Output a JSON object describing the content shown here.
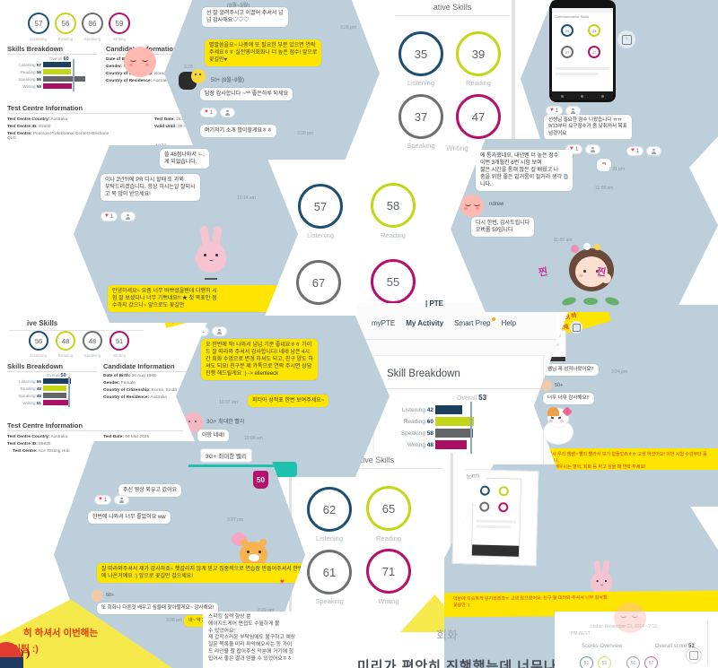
{
  "palette": {
    "navy": "#1d4f72",
    "lime": "#c3d617",
    "gray": "#6e6f72",
    "magenta": "#b5106b",
    "chat_bg": "#bccfdb",
    "kakao_yellow": "#fee500",
    "teal": "#1fc0ae",
    "banner_yellow": "#f6e94b",
    "banner_red": "#e8380d"
  },
  "icons": {
    "heart": "♥",
    "share_arrow": "↑"
  },
  "reaction": {
    "count": "1"
  },
  "report_a": {
    "scores": [
      {
        "label": "Listening",
        "value": "57"
      },
      {
        "label": "Reading",
        "value": "56"
      },
      {
        "label": "Speaking",
        "value": "86"
      },
      {
        "label": "Writing",
        "value": "59"
      }
    ],
    "skills_title": "Skills Breakdown",
    "overall_label": "Overall",
    "overall_value": "60",
    "bars": [
      {
        "label": "Listening",
        "value": 57
      },
      {
        "label": "Reading",
        "value": 56
      },
      {
        "label": "Speaking",
        "value": 86
      },
      {
        "label": "Writing",
        "value": 59
      }
    ],
    "candidate_title": "Candidate Information",
    "candidate": [
      {
        "label": "Date of Birth:",
        "value": ""
      },
      {
        "label": "Gender:",
        "value": "Female"
      },
      {
        "label": "Country of Citizenship:",
        "value": "Korea, South"
      },
      {
        "label": "Country of Residence:",
        "value": "Australia"
      }
    ],
    "centre_title": "Test Centre Information",
    "centre_left": [
      {
        "label": "Test Centre Country:",
        "value": "Australia"
      },
      {
        "label": "Test Centre ID:",
        "value": "81600"
      },
      {
        "label": "Test Centre:",
        "value": "Pearson Professional Centers-Brisbane QLD"
      }
    ],
    "centre_right": [
      {
        "label": "Test Date:",
        "value": "26 Aug 2025"
      },
      {
        "label": "Valid Until:",
        "value": "26 Aug 2027"
      }
    ]
  },
  "report_h": {
    "header": "ive Skills",
    "scores": [
      {
        "label": "Listening",
        "value": "56"
      },
      {
        "label": "Reading",
        "value": "48"
      },
      {
        "label": "Speaking",
        "value": "48"
      },
      {
        "label": "Writing",
        "value": "51"
      }
    ],
    "skills_title": "Skills Breakdown",
    "overall_label": "Overall",
    "overall_value": "50",
    "bars": [
      {
        "label": "Listening",
        "value": 56
      },
      {
        "label": "Reading",
        "value": 48
      },
      {
        "label": "Speaking",
        "value": 48
      },
      {
        "label": "Writing",
        "value": 51
      }
    ],
    "candidate_title": "Candidate Information",
    "candidate": [
      {
        "label": "Date of Birth:",
        "value": "26 Aug 1992"
      },
      {
        "label": "Gender:",
        "value": "Female"
      },
      {
        "label": "Country of Citizenship:",
        "value": "Korea, South"
      },
      {
        "label": "Country of Residence:",
        "value": "Australia"
      }
    ],
    "centre_title": "Test Centre Information",
    "centre_left": [
      {
        "label": "Test Centre Country:",
        "value": "Australia"
      },
      {
        "label": "Test Centre ID:",
        "value": "89830"
      },
      {
        "label": "Test Centre:",
        "value": "Ace Testing Hub"
      }
    ],
    "centre_right": [
      {
        "label": "Test Date:",
        "value": "04 Mar 2025"
      },
      {
        "label": "Valid Until:",
        "value": "04 Mar 2027"
      }
    ]
  },
  "skills_c": {
    "header": "ative Skills",
    "scores": [
      {
        "label": "Listening",
        "value": "35"
      },
      {
        "label": "Reading",
        "value": "39"
      },
      {
        "label": "Speaking",
        "value": "37"
      },
      {
        "label": "Writing",
        "value": "47"
      }
    ]
  },
  "skills_f": {
    "scores": [
      {
        "label": "Listening",
        "value": "57"
      },
      {
        "label": "Reading",
        "value": "58"
      },
      {
        "label": "Speaking",
        "value": "67"
      },
      {
        "label": "Writing",
        "value": "55"
      }
    ]
  },
  "skills_m": {
    "header": "ative Skills",
    "scores": [
      {
        "label": "Listening",
        "value": "62"
      },
      {
        "label": "Reading",
        "value": "65"
      },
      {
        "label": "Speaking",
        "value": "61"
      },
      {
        "label": "Writing",
        "value": "71"
      }
    ]
  },
  "mypte": {
    "logo": "| PTE",
    "nav": [
      {
        "label": "myPTE"
      },
      {
        "label": "My Activity"
      },
      {
        "label": "Smart Prep"
      },
      {
        "label": "Help"
      }
    ],
    "card_title": "Skill Breakdown",
    "overall_label": "Overall",
    "overall_value": "53",
    "bars": [
      {
        "label": "Listening",
        "value": 42
      },
      {
        "label": "Reading",
        "value": 60
      },
      {
        "label": "Speaking",
        "value": 58
      },
      {
        "label": "Writing",
        "value": 48
      }
    ]
  },
  "chat_b": {
    "top_fragment": "(8월~9월)",
    "m1": "선 잘 알려주시고 이끌어 주셔서 넘\n넘 감사해요♡♡♡",
    "t1": "3:28 pm",
    "m2": "별말씀을요~ 나중에 또 필요한 부분 있으면 연락\n주세요ㅎㅎ 실전영어회화나 더 높은 점수! 앞으로\n꽃길만♥",
    "t2": "3:28",
    "sender": "50+ (8월~9월)",
    "m3": "답장 감사합니다 ~^^ 좋은하루 되세요",
    "m4": "여기저기 소개 많이할게요ㅎㅎ",
    "t4": "3:29 pm"
  },
  "chat_d": {
    "m1": "선생님 필요한 점수 나왔습니다 ㅠㅠ\n9/13부터 요구점수가 좀 낮춰져서 목표\n넘겼어요",
    "phone_label": "Communicative Skills"
  },
  "chat_e": {
    "m0": "쓸 48점나와서 ㄴ,\n게 되었습니다.",
    "m1": "이나 2년뒤에 PR 다시 할때 또 과외\n부탁드리겠습니다. 항상 하시는일 잘되시\n고 복 많이 받으세요!",
    "t1": "10:14 am",
    "m2": "안녕하세요~ 요즘 너무 바쁘셨을텐데 다행히 시\n험 잘 보셨다니 너무 기쁘네요!! ★ 첫 목표인 점\n수까지 갔으니~ 앞으로도 꽃길만"
  },
  "chat_g": {
    "m1": "에 통과했네요, 내년엔 더 높은 점수\n이번 3개월간 6번 시험 보며\n짧은 시간을 통해 많은 걸 배웠고 나\n중을 위한 좋은 밑거름이 될거라 생각 듭\n니다.",
    "t1": "11:58 am",
    "sender": "ndrew",
    "m2": "다시 한번, 감사드립니다\n오버롤 59입니다",
    "t2": "11:59 am",
    "m3": "ㅋ",
    "t3": "7:31 pm",
    "sticker_text_1": "찐",
    "sticker_text_2": "찐"
  },
  "chat_i": {
    "m1": "오 한번에 딱! 나와서 넘넘 기분 좋네요ㅎㅎ 가이\n드 잘 따라와 주셔서 감사합니다! 네네 남은 4시\n간 회화 수업으로 변경 하셔도 되고, 친구 양도 하\n셔도 되요! 친구분 제 카톡으로 연락 주시면 상담\n진행 해드릴게요 :) -> ellenleeck",
    "t1": "10:07 am",
    "m2": "피티아 성적표 한번 보여주세요~",
    "sender": "3G+ 최대한 빨리",
    "m3": "아항 네네!",
    "t3": "10:08 am"
  },
  "chat_k": {
    "banner_top": "군요!! 열심히 하\n기술적 문제",
    "m1": "쌤님 제 성적나왔어요!!",
    "t1": "3:34 pm",
    "sender": "50+",
    "m2": "너무 너무 감사해요!!",
    "banner_bottom_1": "오! 역시 우리 쌤쌤~ 빨리 빨라서 보기 힘들었죠ㅎㅎ 고생 하셨어요! 이번 시험 수강부터 홀가분하니,",
    "banner_bottom_2": "앞으로 배우시는 영어, 회화 등 하고 싶을 때 연락 주세요!"
  },
  "chat_l": {
    "header_name": "3G+ 최대한 빨리",
    "badge": "50",
    "m1": "주신 영상 외우고 갔어요",
    "m2": "한번에 나와서 너무 좋았어요 ww",
    "t2": "3:27 pm",
    "m3": "잘 따라와주셔서 제가 감사하죠~ 헷갈리지 않게 믿고 집중적으로 연습장 만들어주셔서 한번에 나온거예요 :) 앞으로 꽃길만 걸으세요!",
    "sender": "50+",
    "m4": "또 회화나 다른것 배우고 싶을때 찾아뵐게요~ 감사해요!",
    "t4": "3:29 pm",
    "t5": "3:28 pm",
    "m5": "네~ 약 2일 정도되었으니 생"
  },
  "chat_n": {
    "banner_1": "덕분에 익숙하게 넘기셨겠죠ㅠ 고생 많으셨어요. 친구 잘 데려와 주셔서 너무 감사했",
    "banner_2": "꽃길만 :)"
  },
  "banner_left": {
    "line1": "히 하셔서 이번해는",
    "line2": "화이팅 :)"
  },
  "scores_p": {
    "date_line": "unday, November 23, 2024 - 7:15",
    "date_line2": "PM AEST",
    "title": "Scores Overview",
    "overall_label": "Overall score",
    "overall_value": "53",
    "circles": [
      {
        "value": "51"
      },
      {
        "value": "51"
      },
      {
        "value": "50"
      },
      {
        "value": "57"
      }
    ]
  },
  "testimonial": {
    "lines": [
      "스피킹 실력 향상 뿐",
      "에이지드케어 면접도 수월하게 볼",
      "수 있었어요!",
      "제 갑작스러운 부탁임에도 불구하고 예상",
      "질문 목록을 미리 파악해오시는 등 가이",
      "드 라인을 잘 잡아주신 덕분에 거기에 힘",
      "입어서 좋은 결과 얻을 수 있었어요ㅎㅎ"
    ]
  },
  "strays": {
    "writing": "Writing",
    "pte": "| PTE",
    "form": "form",
    "wm": "4078",
    "peek": "따라와주셔서",
    "hoehwa": "회화",
    "big": "미리가 편안히 진행했는데 너무나"
  }
}
